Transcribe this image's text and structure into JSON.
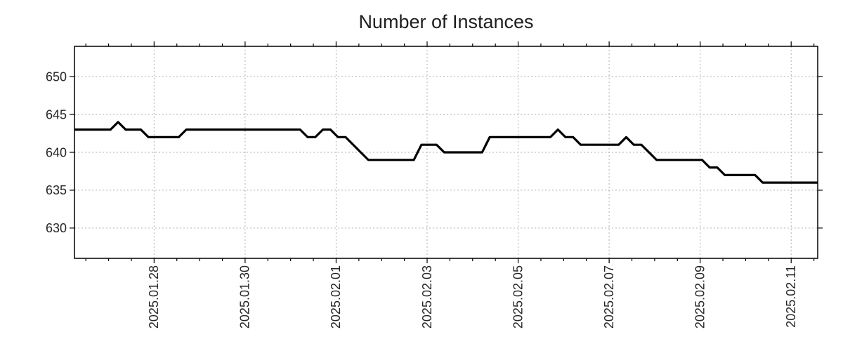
{
  "chart_data": {
    "type": "line",
    "title": "Number of Instances",
    "xlabel": "",
    "ylabel": "",
    "grid": true,
    "legend": false,
    "colors": {
      "line": "#000000",
      "grid": "#b0b0b0",
      "spine": "#000000",
      "text": "#262626",
      "background": "#ffffff"
    },
    "x_axis": {
      "start": "2025-01-26 06:00",
      "end": "2025-02-11 14:00",
      "tick_labels": [
        "2025.01.28",
        "2025.01.30",
        "2025.02.01",
        "2025.02.03",
        "2025.02.05",
        "2025.02.07",
        "2025.02.09",
        "2025.02.11"
      ],
      "minor_tick_hours": 12
    },
    "y_axis": {
      "min": 626,
      "max": 654,
      "ticks": [
        630,
        635,
        640,
        645,
        650
      ]
    },
    "series": [
      {
        "name": "Number of Instances",
        "color": "#000000",
        "points": [
          [
            "2025-01-26 06:00",
            643
          ],
          [
            "2025-01-27 01:00",
            643
          ],
          [
            "2025-01-27 05:00",
            644
          ],
          [
            "2025-01-27 09:00",
            643
          ],
          [
            "2025-01-27 17:00",
            643
          ],
          [
            "2025-01-27 21:00",
            642
          ],
          [
            "2025-01-28 13:00",
            642
          ],
          [
            "2025-01-28 17:00",
            643
          ],
          [
            "2025-01-31 05:00",
            643
          ],
          [
            "2025-01-31 09:00",
            642
          ],
          [
            "2025-01-31 13:00",
            642
          ],
          [
            "2025-01-31 17:00",
            643
          ],
          [
            "2025-01-31 21:00",
            643
          ],
          [
            "2025-02-01 01:00",
            642
          ],
          [
            "2025-02-01 05:00",
            642
          ],
          [
            "2025-02-01 09:00",
            641
          ],
          [
            "2025-02-01 13:00",
            640
          ],
          [
            "2025-02-01 17:00",
            639
          ],
          [
            "2025-02-02 17:00",
            639
          ],
          [
            "2025-02-02 21:00",
            641
          ],
          [
            "2025-02-03 05:00",
            641
          ],
          [
            "2025-02-03 09:00",
            640
          ],
          [
            "2025-02-04 05:00",
            640
          ],
          [
            "2025-02-04 09:00",
            642
          ],
          [
            "2025-02-05 17:00",
            642
          ],
          [
            "2025-02-05 21:00",
            643
          ],
          [
            "2025-02-06 01:00",
            642
          ],
          [
            "2025-02-06 05:00",
            642
          ],
          [
            "2025-02-06 09:00",
            641
          ],
          [
            "2025-02-07 05:00",
            641
          ],
          [
            "2025-02-07 09:00",
            642
          ],
          [
            "2025-02-07 13:00",
            641
          ],
          [
            "2025-02-07 17:00",
            641
          ],
          [
            "2025-02-07 21:00",
            640
          ],
          [
            "2025-02-08 01:00",
            639
          ],
          [
            "2025-02-09 01:00",
            639
          ],
          [
            "2025-02-09 05:00",
            638
          ],
          [
            "2025-02-09 09:00",
            638
          ],
          [
            "2025-02-09 13:00",
            637
          ],
          [
            "2025-02-10 05:00",
            637
          ],
          [
            "2025-02-10 09:00",
            636
          ],
          [
            "2025-02-11 14:00",
            636
          ]
        ]
      }
    ]
  }
}
